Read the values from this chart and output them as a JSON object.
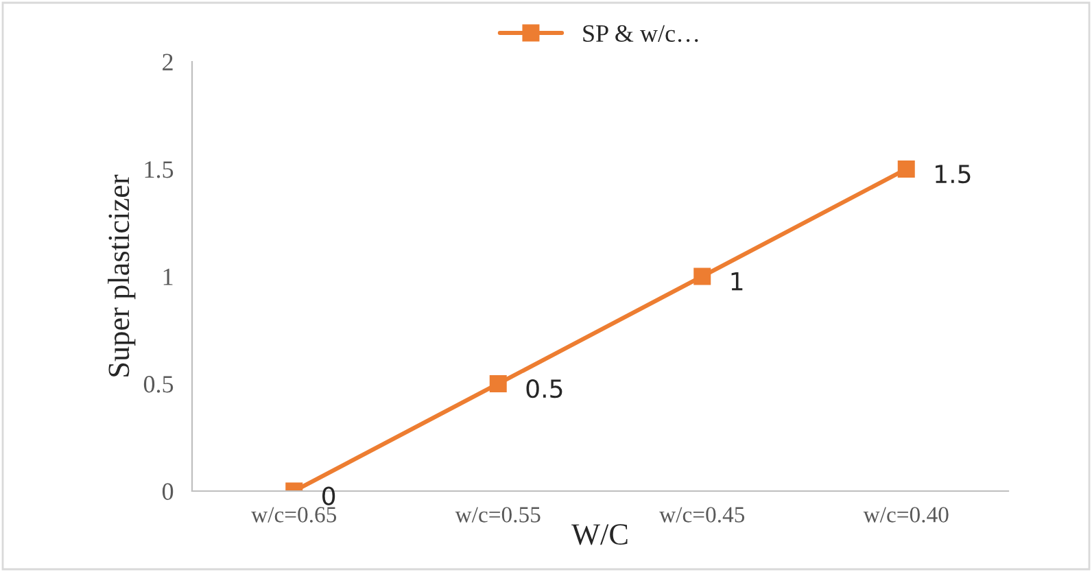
{
  "chart_data": {
    "type": "line",
    "xlabel": "W/C",
    "ylabel": "Super plasticizer",
    "categories": [
      "w/c=0.65",
      "w/c=0.55",
      "w/c=0.45",
      "w/c=0.40"
    ],
    "series": [
      {
        "name": "SP & w/c…",
        "color": "#ed7d31",
        "values": [
          0,
          0.5,
          1,
          1.5
        ]
      }
    ],
    "ylim": [
      0,
      2
    ],
    "yticks": [
      0,
      0.5,
      1,
      1.5,
      2
    ],
    "grid": false,
    "legend": "top",
    "marker": "square",
    "line_style": "solid",
    "data_labels": true
  }
}
